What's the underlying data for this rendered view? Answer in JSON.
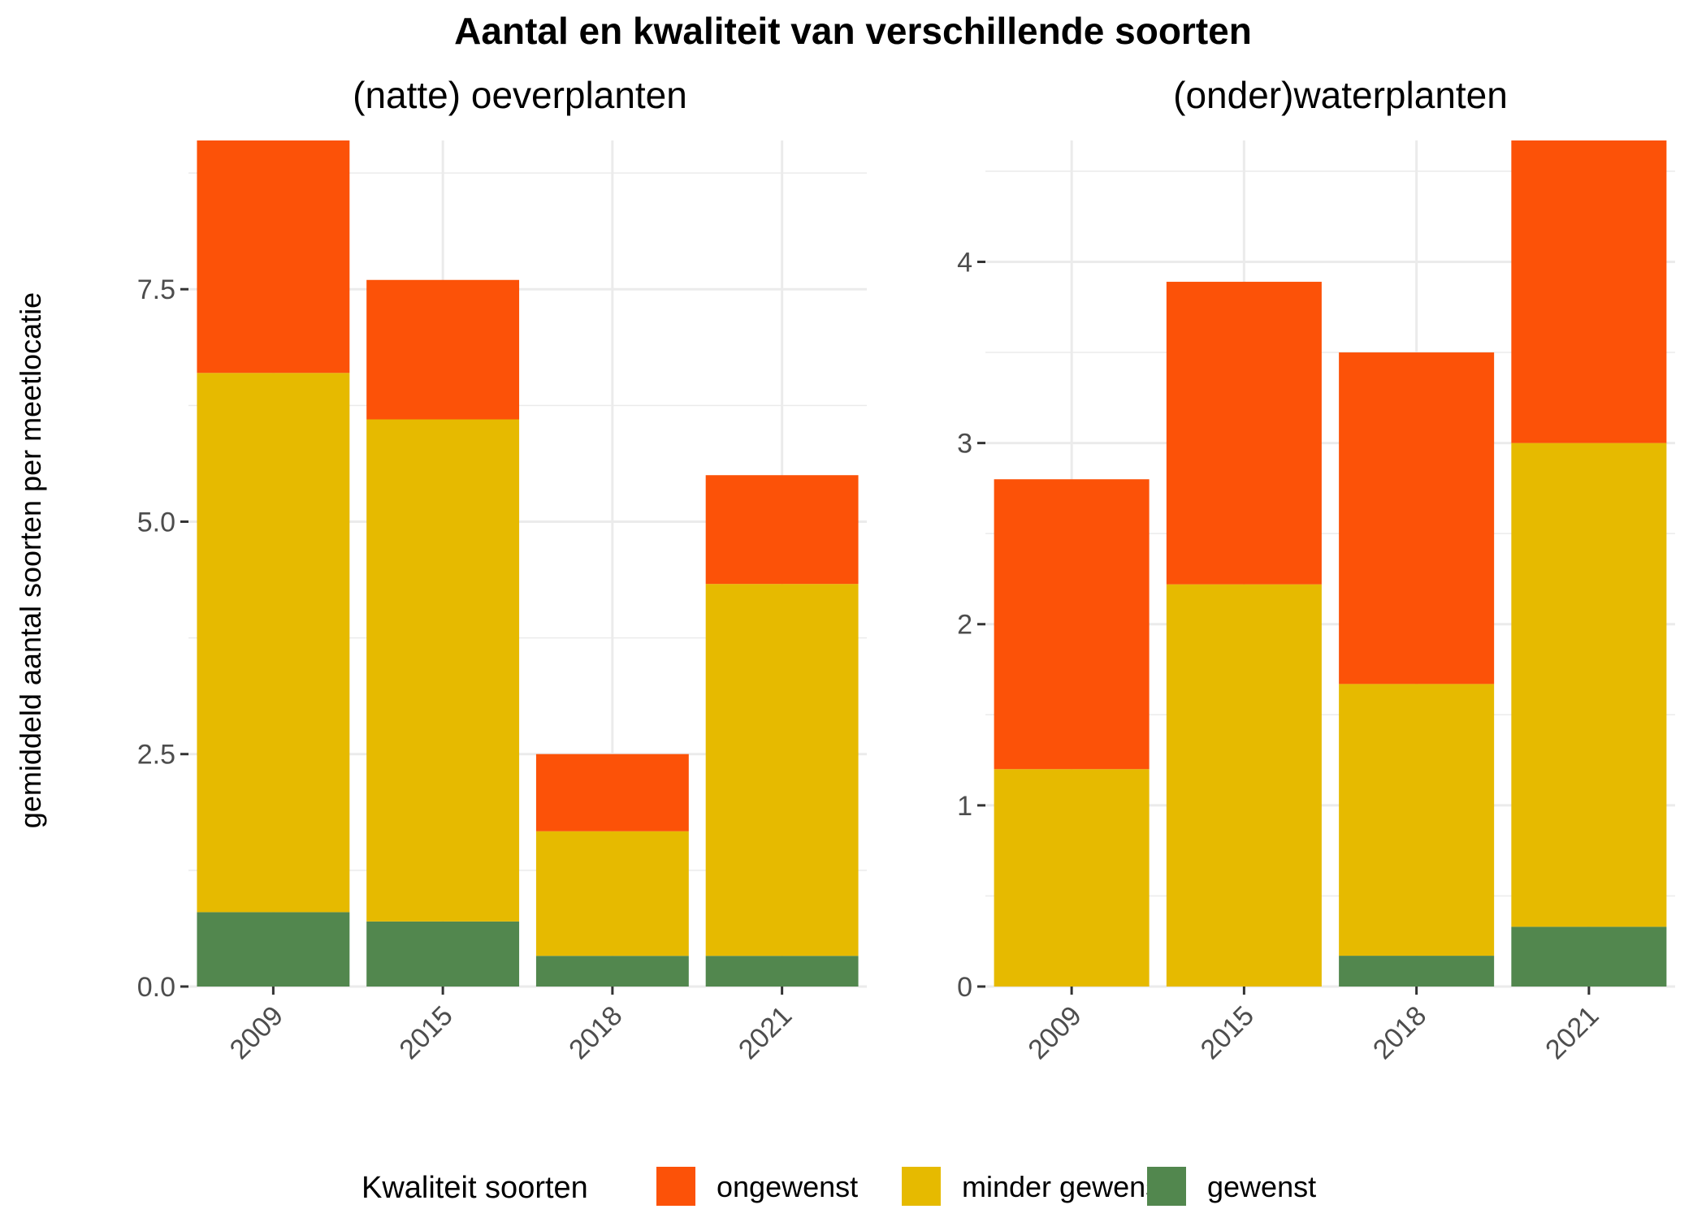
{
  "title": "Aantal en kwaliteit van verschillende soorten",
  "ylabel": "gemiddeld aantal soorten per meetlocatie",
  "legend": {
    "title": "Kwaliteit soorten",
    "position": "bottom",
    "items": [
      {
        "label": "ongewenst",
        "color": "#FC5208"
      },
      {
        "label": "minder gewenst",
        "color": "#E6BA00"
      },
      {
        "label": "gewenst",
        "color": "#52874E"
      }
    ]
  },
  "chart_data": [
    {
      "type": "bar",
      "stacked": true,
      "title": "(natte) oeverplanten",
      "categories": [
        "2009",
        "2015",
        "2018",
        "2021"
      ],
      "series": [
        {
          "name": "gewenst",
          "color": "#52874E",
          "values": [
            0.8,
            0.7,
            0.33,
            0.33
          ]
        },
        {
          "name": "minder gewenst",
          "color": "#E6BA00",
          "values": [
            5.8,
            5.4,
            1.34,
            4.0
          ]
        },
        {
          "name": "ongewenst",
          "color": "#FC5208",
          "values": [
            2.5,
            1.5,
            0.83,
            1.17
          ]
        }
      ],
      "yticks": [
        "0.0",
        "2.5",
        "5.0",
        "7.5"
      ],
      "ylim": [
        0,
        9.1
      ],
      "grid": true
    },
    {
      "type": "bar",
      "stacked": true,
      "title": "(onder)waterplanten",
      "categories": [
        "2009",
        "2015",
        "2018",
        "2021"
      ],
      "series": [
        {
          "name": "gewenst",
          "color": "#52874E",
          "values": [
            0,
            0,
            0.17,
            0.33
          ]
        },
        {
          "name": "minder gewenst",
          "color": "#E6BA00",
          "values": [
            1.2,
            2.22,
            1.5,
            2.67
          ]
        },
        {
          "name": "ongewenst",
          "color": "#FC5208",
          "values": [
            1.6,
            1.67,
            1.83,
            1.67
          ]
        }
      ],
      "yticks": [
        "0",
        "1",
        "2",
        "3",
        "4"
      ],
      "ylim": [
        0,
        4.67
      ],
      "grid": true
    }
  ]
}
